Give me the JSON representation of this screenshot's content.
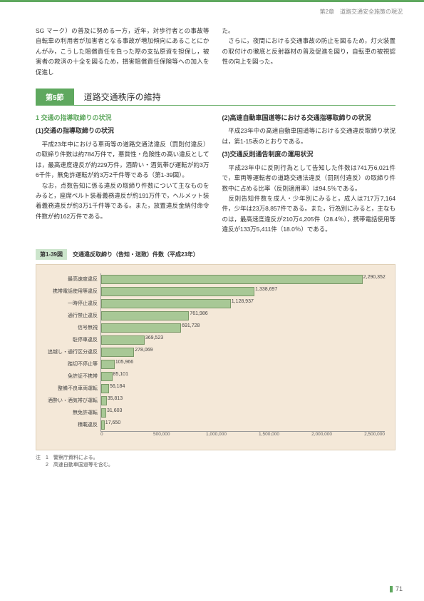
{
  "header": {
    "chapter": "第2章　道路交通安全施策の現況"
  },
  "top": {
    "left": "SG マーク）の普及に努める一方，近年，対歩行者との事故等自転車の利用者が加害者となる事故が増加傾向にあることにかんがみ，こうした賠償責任を負った際の支払原資を担保し，被害者の救済の十全を図るため，損害賠償責任保険等への加入を促進し",
    "right": "た。\n　さらに，夜間における交通事故の防止を図るため，灯火装置の取付けの徹底と反射器材の普及促進を図り，自転車の被視認性の向上を図った。"
  },
  "section": {
    "num": "第5節",
    "title": "道路交通秩序の維持"
  },
  "body": {
    "left_h1": "1 交通の指導取締りの状況",
    "left_h2": "(1)交通の指導取締りの状況",
    "left_p": "　平成23年中における車両等の道路交通法違反（罰則付違反）の取締り件数は約784万件で，悪質性・危険性の高い違反としては，最高速度違反が約229万件，酒酔い・酒気帯び運転が約3万6千件，無免許運転が約3万2千件等である（第1-39図）。\n　なお，点数告知に係る違反の取締り件数について主なものをみると，座席ベルト装着義務違反が約191万件で，ヘルメット装着義務違反が約3万1千件等である。また，放置違反金納付命令件数が約162万件である。",
    "right_h1": "(2)高速自動車国道等における交通指導取締りの状況",
    "right_p1": "　平成23年中の高速自動車国道等における交通違反取締り状況は，第1-15表のとおりである。",
    "right_h2": "(3)交通反則通告制度の運用状況",
    "right_p2": "　平成23年中に反則行為として告知した件数は741万6,021件で，車両等運転者の道路交通法違反（罰則付違反）の取締り件数中に占める比率（反則適用率）は94.5％である。\n　反則告知件数を成人・少年別にみると，成人は717万7,164件，少年は23万8,857件である。また，行為別にみると，主なものは，最高速度違反が210万4,205件（28.4％），携帯電話使用等違反が133万5,411件（18.0％）である。"
  },
  "chart": {
    "title_tag": "第1-39図",
    "title": "交通違反取締り（告知・送致）件数（平成23年）",
    "max": 2500000,
    "rows": [
      {
        "label": "最高速度違反",
        "value": 2290352,
        "display": "2,290,352"
      },
      {
        "label": "携帯電話使用等違反",
        "value": 1338697,
        "display": "1,338,697"
      },
      {
        "label": "一時停止違反",
        "value": 1128937,
        "display": "1,128,937"
      },
      {
        "label": "通行禁止違反",
        "value": 761986,
        "display": "761,986"
      },
      {
        "label": "信号無視",
        "value": 691728,
        "display": "691,728"
      },
      {
        "label": "駐停車違反",
        "value": 369523,
        "display": "369,523"
      },
      {
        "label": "追越し・通行区分違反",
        "value": 278069,
        "display": "278,069"
      },
      {
        "label": "踏切不停止等",
        "value": 105966,
        "display": "105,966"
      },
      {
        "label": "免許証不携帯",
        "value": 85101,
        "display": "85,101"
      },
      {
        "label": "整備不良車両運転",
        "value": 56184,
        "display": "56,184"
      },
      {
        "label": "酒酔い・酒気帯び運転",
        "value": 35813,
        "display": "35,813"
      },
      {
        "label": "無免許運転",
        "value": 31603,
        "display": "31,603"
      },
      {
        "label": "積載違反",
        "value": 17650,
        "display": "17,650"
      }
    ],
    "ticks": [
      "0",
      "500,000",
      "1,000,000",
      "1,500,000",
      "2,000,000",
      "2,500,000"
    ]
  },
  "notes": {
    "n1": "注　1　警察庁資料による。",
    "n2": "　　2　高速自動車国道等を含む。"
  },
  "page": "71"
}
